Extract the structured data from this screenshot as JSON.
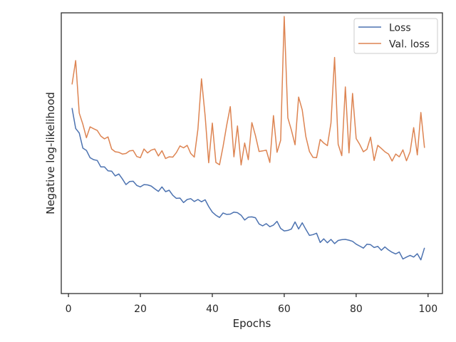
{
  "chart_data": {
    "type": "line",
    "title": "",
    "xlabel": "Epochs",
    "ylabel": "Negative log-likelihood",
    "xlim": [
      -2,
      104
    ],
    "ylim": [
      0.0,
      1.0
    ],
    "xticks": [
      0,
      20,
      40,
      60,
      80,
      100
    ],
    "xtick_labels": [
      "0",
      "20",
      "40",
      "60",
      "80",
      "100"
    ],
    "yticks_shown": false,
    "grid": false,
    "legend": "top-right",
    "colors": {
      "Loss": "#4c72b0",
      "Val. loss": "#dd8452"
    },
    "x": [
      1,
      2,
      3,
      4,
      5,
      6,
      7,
      8,
      9,
      10,
      11,
      12,
      13,
      14,
      15,
      16,
      17,
      18,
      19,
      20,
      21,
      22,
      23,
      24,
      25,
      26,
      27,
      28,
      29,
      30,
      31,
      32,
      33,
      34,
      35,
      36,
      37,
      38,
      39,
      40,
      41,
      42,
      43,
      44,
      45,
      46,
      47,
      48,
      49,
      50,
      51,
      52,
      53,
      54,
      55,
      56,
      57,
      58,
      59,
      60,
      61,
      62,
      63,
      64,
      65,
      66,
      67,
      68,
      69,
      70,
      71,
      72,
      73,
      74,
      75,
      76,
      77,
      78,
      79,
      80,
      81,
      82,
      83,
      84,
      85,
      86,
      87,
      88,
      89,
      90,
      91,
      92,
      93,
      94,
      95,
      96,
      97,
      98,
      99
    ],
    "series": [
      {
        "name": "Loss",
        "values": [
          0.661,
          0.588,
          0.572,
          0.518,
          0.51,
          0.484,
          0.477,
          0.474,
          0.451,
          0.451,
          0.437,
          0.436,
          0.419,
          0.426,
          0.408,
          0.388,
          0.399,
          0.4,
          0.385,
          0.38,
          0.388,
          0.387,
          0.383,
          0.373,
          0.364,
          0.38,
          0.363,
          0.368,
          0.35,
          0.339,
          0.34,
          0.324,
          0.335,
          0.338,
          0.328,
          0.335,
          0.327,
          0.334,
          0.31,
          0.29,
          0.279,
          0.271,
          0.287,
          0.282,
          0.283,
          0.29,
          0.288,
          0.279,
          0.262,
          0.272,
          0.273,
          0.27,
          0.248,
          0.241,
          0.249,
          0.238,
          0.244,
          0.257,
          0.232,
          0.223,
          0.225,
          0.23,
          0.255,
          0.23,
          0.252,
          0.229,
          0.207,
          0.21,
          0.215,
          0.182,
          0.195,
          0.181,
          0.193,
          0.178,
          0.189,
          0.192,
          0.193,
          0.19,
          0.186,
          0.176,
          0.169,
          0.162,
          0.176,
          0.174,
          0.164,
          0.168,
          0.154,
          0.166,
          0.155,
          0.147,
          0.141,
          0.148,
          0.123,
          0.13,
          0.136,
          0.13,
          0.142,
          0.12,
          0.163
        ]
      },
      {
        "name": "Val. loss",
        "values": [
          0.745,
          0.83,
          0.643,
          0.603,
          0.555,
          0.594,
          0.587,
          0.581,
          0.561,
          0.551,
          0.558,
          0.515,
          0.505,
          0.503,
          0.497,
          0.499,
          0.508,
          0.51,
          0.488,
          0.484,
          0.515,
          0.501,
          0.511,
          0.515,
          0.49,
          0.509,
          0.481,
          0.487,
          0.486,
          0.502,
          0.526,
          0.519,
          0.528,
          0.499,
          0.486,
          0.586,
          0.765,
          0.633,
          0.466,
          0.607,
          0.467,
          0.459,
          0.524,
          0.6,
          0.666,
          0.487,
          0.597,
          0.458,
          0.536,
          0.477,
          0.609,
          0.563,
          0.506,
          0.508,
          0.511,
          0.467,
          0.634,
          0.503,
          0.546,
          0.987,
          0.626,
          0.582,
          0.53,
          0.7,
          0.654,
          0.56,
          0.506,
          0.485,
          0.484,
          0.549,
          0.536,
          0.527,
          0.607,
          0.841,
          0.532,
          0.491,
          0.736,
          0.501,
          0.713,
          0.552,
          0.531,
          0.505,
          0.514,
          0.557,
          0.474,
          0.528,
          0.517,
          0.505,
          0.497,
          0.472,
          0.497,
          0.487,
          0.512,
          0.473,
          0.505,
          0.591,
          0.494,
          0.645,
          0.519
        ]
      }
    ]
  }
}
